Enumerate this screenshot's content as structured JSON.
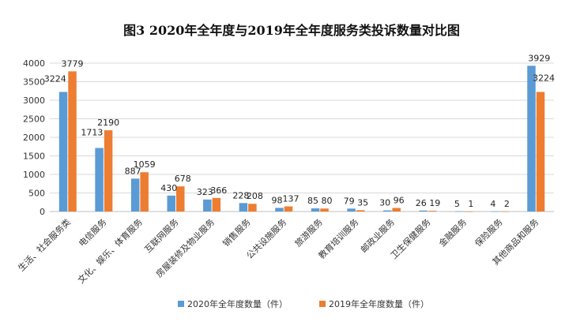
{
  "chart_data": {
    "type": "bar",
    "title": "图3 2020年全年度与2019年全年度服务类投诉数量对比图",
    "categories": [
      "生活、社会服务类",
      "电信服务",
      "文化、娱乐、体育服务",
      "互联网服务",
      "房屋装修及物业服务",
      "销售服务",
      "公共设施服务",
      "旅游服务",
      "教育培训服务",
      "邮政业服务",
      "卫生保健服务",
      "金融服务",
      "保险服务",
      "其他商品和服务"
    ],
    "series": [
      {
        "name": "2020年全年度数量（件）",
        "color": "#5B9BD5",
        "values": [
          3224,
          1713,
          887,
          430,
          323,
          228,
          98,
          85,
          79,
          30,
          26,
          5,
          4,
          3929
        ]
      },
      {
        "name": "2019年全年度数量（件）",
        "color": "#ED7D31",
        "values": [
          3779,
          2190,
          1059,
          678,
          366,
          208,
          137,
          80,
          35,
          96,
          19,
          1,
          2,
          3224
        ]
      }
    ],
    "ylim": [
      0,
      4000
    ],
    "yticks": [
      0,
      500,
      1000,
      1500,
      2000,
      2500,
      3000,
      3500,
      4000
    ],
    "grid": true,
    "legend_position": "bottom"
  }
}
